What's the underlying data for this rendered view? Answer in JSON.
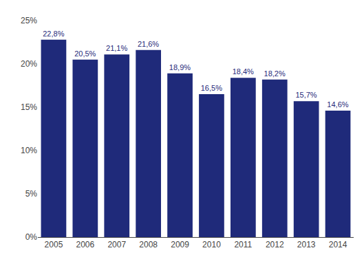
{
  "chart_data": {
    "type": "bar",
    "categories": [
      "2005",
      "2006",
      "2007",
      "2008",
      "2009",
      "2010",
      "2011",
      "2012",
      "2013",
      "2014"
    ],
    "values": [
      22.8,
      20.5,
      21.1,
      21.6,
      18.9,
      16.5,
      18.4,
      18.2,
      15.7,
      14.6
    ],
    "value_labels": [
      "22,8%",
      "20,5%",
      "21,1%",
      "21,6%",
      "18,9%",
      "16,5%",
      "18,4%",
      "18,2%",
      "15,7%",
      "14,6%"
    ],
    "data_labels": true,
    "color": "#1F2A7A",
    "ylim": [
      0,
      25
    ],
    "yticks": [
      {
        "value": 0,
        "label": "0%"
      },
      {
        "value": 5,
        "label": "5%"
      },
      {
        "value": 10,
        "label": "10%"
      },
      {
        "value": 15,
        "label": "15%"
      },
      {
        "value": 20,
        "label": "20%"
      },
      {
        "value": 25,
        "label": "25%"
      }
    ],
    "grid": false
  }
}
